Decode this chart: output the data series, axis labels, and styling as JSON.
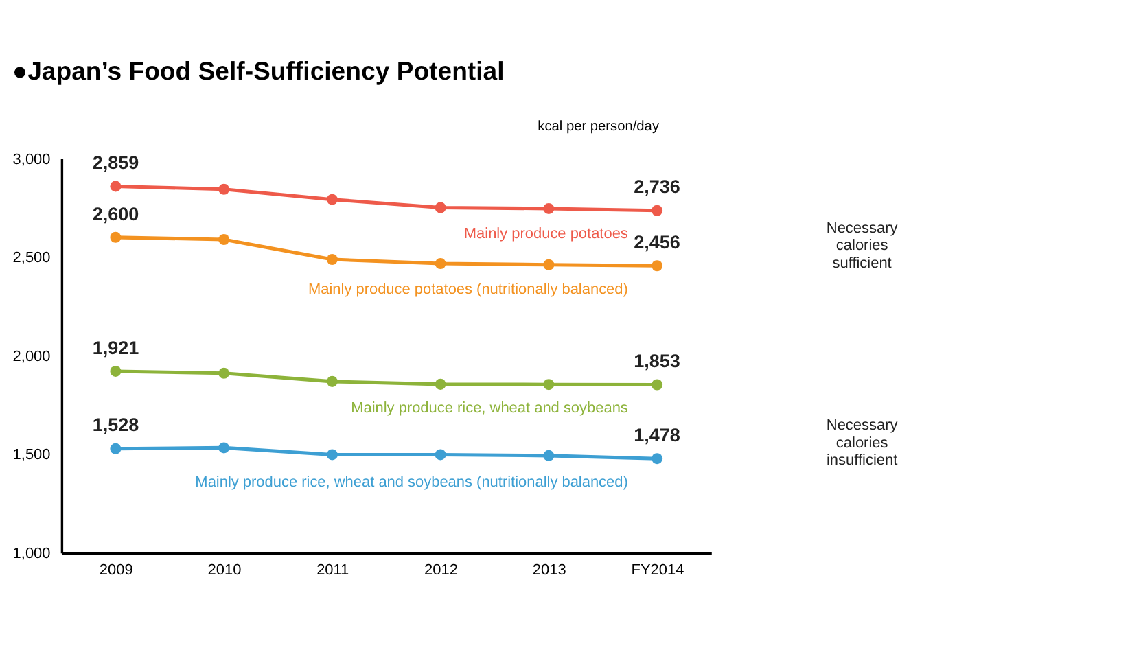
{
  "chart_data": {
    "type": "line",
    "title": "●Japan’s Food Self-Sufficiency Potential",
    "ylabel": "kcal per person/day",
    "categories": [
      "2009",
      "2010",
      "2011",
      "2012",
      "2013",
      "FY2014"
    ],
    "series": [
      {
        "name": "Mainly produce potatoes",
        "color": "#ee5a4a",
        "values": [
          2859,
          2844,
          2792,
          2751,
          2746,
          2736
        ],
        "value_labels": [
          "2,859",
          null,
          null,
          null,
          null,
          "2,736"
        ]
      },
      {
        "name": "Mainly produce potatoes (nutritionally balanced)",
        "color": "#f39220",
        "values": [
          2600,
          2589,
          2488,
          2467,
          2461,
          2456
        ],
        "value_labels": [
          "2,600",
          null,
          null,
          null,
          null,
          "2,456"
        ]
      },
      {
        "name": "Mainly produce rice, wheat and soybeans",
        "color": "#8db33a",
        "values": [
          1921,
          1911,
          1869,
          1855,
          1854,
          1853
        ],
        "value_labels": [
          "1,921",
          null,
          null,
          null,
          null,
          "1,853"
        ]
      },
      {
        "name": "Mainly produce rice, wheat and soybeans (nutritionally balanced)",
        "color": "#3d9fd3",
        "values": [
          1528,
          1533,
          1498,
          1498,
          1493,
          1478
        ],
        "value_labels": [
          "1,528",
          null,
          null,
          null,
          null,
          "1,478"
        ]
      }
    ],
    "ylim": [
      1000,
      3000
    ],
    "yticks": [
      {
        "value": 1000,
        "label": "1,000"
      },
      {
        "value": 1500,
        "label": "1,500"
      },
      {
        "value": 2000,
        "label": "2,000"
      },
      {
        "value": 2500,
        "label": "2,500"
      },
      {
        "value": 3000,
        "label": "3,000"
      }
    ],
    "grid": false,
    "marker": "circle",
    "line_style": "solid",
    "annotations": [
      "Necessary calories sufficient",
      "Necessary calories insufficient"
    ]
  }
}
